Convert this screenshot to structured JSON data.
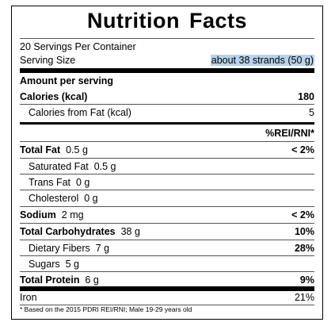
{
  "title": "Nutrition Facts",
  "servings_per_container": "20 Servings Per Container",
  "serving_size": {
    "label": "Serving Size",
    "value": "about 38 strands (50 g)"
  },
  "amount_per_serving": "Amount per serving",
  "calories": {
    "label": "Calories (kcal)",
    "value": "180"
  },
  "calories_from_fat": {
    "label": "Calories from Fat (kcal)",
    "value": "5"
  },
  "rei_header": "%REI/RNI*",
  "nutrients": {
    "total_fat": {
      "label": "Total Fat",
      "amount": "0.5 g",
      "pct": "< 2%"
    },
    "saturated_fat": {
      "label": "Saturated Fat",
      "amount": "0.5 g"
    },
    "trans_fat": {
      "label": "Trans Fat",
      "amount": "0 g"
    },
    "cholesterol": {
      "label": "Cholesterol",
      "amount": "0 g"
    },
    "sodium": {
      "label": "Sodium",
      "amount": "2 mg",
      "pct": "< 2%"
    },
    "total_carbs": {
      "label": "Total Carbohydrates",
      "amount": "38 g",
      "pct": "10%"
    },
    "dietary_fibers": {
      "label": "Dietary Fibers",
      "amount": "7 g",
      "pct": "28%"
    },
    "sugars": {
      "label": "Sugars",
      "amount": "5 g"
    },
    "total_protein": {
      "label": "Total Protein",
      "amount": "6 g",
      "pct": "9%"
    }
  },
  "iron": {
    "label": "Iron",
    "pct": "21%"
  },
  "footnote": "* Based on the 2015 PDRI REI/RNI; Male 19-29 years old"
}
